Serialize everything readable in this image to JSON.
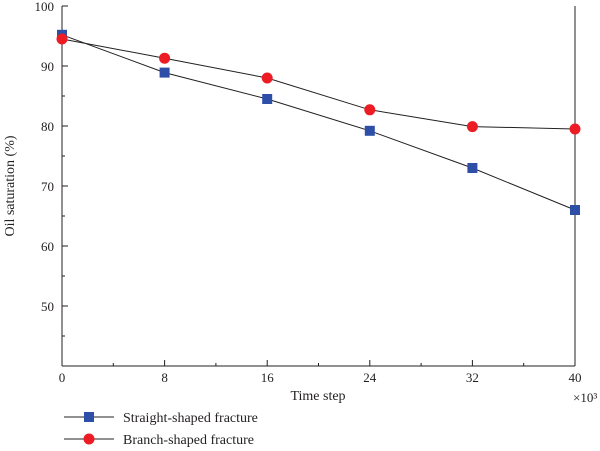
{
  "chart_data": {
    "type": "line",
    "xlabel": "Time step",
    "ylabel": "Oil saturation (%)",
    "x_multiplier_label": "×10³",
    "x": [
      0,
      8,
      16,
      24,
      32,
      40
    ],
    "x_ticks": [
      "0",
      "8",
      "16",
      "24",
      "32",
      "40"
    ],
    "y_ticks": [
      "50",
      "60",
      "70",
      "80",
      "90",
      "100"
    ],
    "xlim": [
      0,
      40
    ],
    "ylim": [
      40,
      100
    ],
    "grid": false,
    "legend_position": "bottom-left, below plot",
    "series": [
      {
        "name": "Straight-shaped fracture",
        "marker": "square",
        "color": "#2e4fa8",
        "values": [
          95.2,
          88.9,
          84.5,
          79.2,
          73.0,
          66.0
        ]
      },
      {
        "name": "Branch-shaped fracture",
        "marker": "circle",
        "color": "#ed1c24",
        "values": [
          94.5,
          91.3,
          88.0,
          82.7,
          79.9,
          79.5
        ]
      }
    ]
  }
}
